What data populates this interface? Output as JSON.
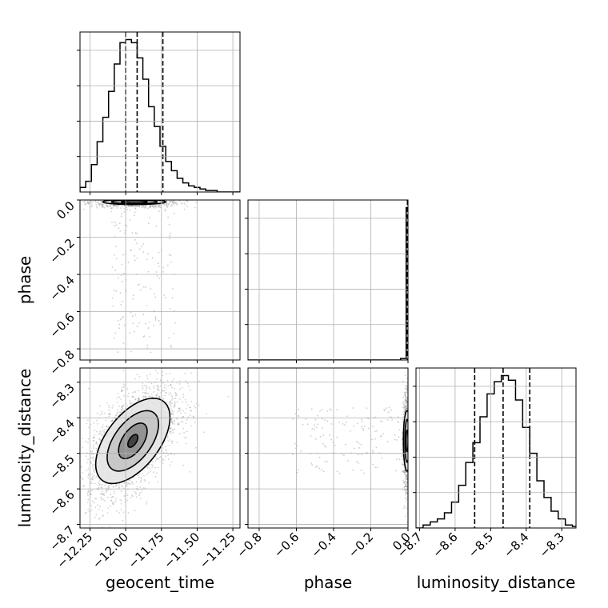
{
  "chart_data": {
    "type": "corner",
    "parameters": [
      "geocent_time",
      "phase",
      "luminosity_distance"
    ],
    "axis_labels": {
      "geocent_time": "geocent_time",
      "phase": "phase",
      "luminosity_distance": "luminosity_distance"
    },
    "ranges": {
      "geocent_time": [
        -12.32,
        -11.2
      ],
      "phase": [
        -0.86,
        0.0
      ],
      "luminosity_distance": [
        -8.71,
        -8.26
      ]
    },
    "ticks": {
      "geocent_time": [
        -12.25,
        -12.0,
        -11.75,
        -11.5,
        -11.25
      ],
      "phase": [
        -0.8,
        -0.6,
        -0.4,
        -0.2,
        0.0
      ],
      "luminosity_distance": [
        -8.7,
        -8.6,
        -8.5,
        -8.4,
        -8.3
      ]
    },
    "tick_labels": {
      "geocent_time": [
        "−12.25",
        "−12.00",
        "−11.75",
        "−11.50",
        "−11.25"
      ],
      "phase": [
        "−0.8",
        "−0.6",
        "−0.4",
        "−0.2",
        "0.0"
      ],
      "luminosity_distance": [
        "−8.7",
        "−8.6",
        "−8.5",
        "−8.4",
        "−8.3"
      ]
    },
    "grid": true,
    "quantiles": {
      "geocent_time": [
        -12.0,
        -11.92,
        -11.74
      ],
      "phase": [
        -0.003,
        -0.001,
        0.0
      ],
      "luminosity_distance": [
        -8.545,
        -8.465,
        -8.39
      ]
    },
    "histograms": {
      "geocent_time": {
        "edges": [
          -12.32,
          -12.28,
          -12.24,
          -12.2,
          -12.16,
          -12.12,
          -12.08,
          -12.04,
          -12.0,
          -11.96,
          -11.92,
          -11.88,
          -11.84,
          -11.8,
          -11.76,
          -11.72,
          -11.68,
          -11.64,
          -11.6,
          -11.56,
          -11.52,
          -11.48,
          -11.44,
          -11.4,
          -11.36,
          -11.32,
          -11.28,
          -11.24,
          -11.2
        ],
        "counts": [
          0.03,
          0.07,
          0.18,
          0.33,
          0.49,
          0.66,
          0.84,
          0.98,
          1.0,
          0.98,
          0.88,
          0.74,
          0.56,
          0.43,
          0.3,
          0.2,
          0.14,
          0.09,
          0.06,
          0.04,
          0.03,
          0.02,
          0.01,
          0.01,
          0.0,
          0.0,
          0.0,
          0.0
        ]
      },
      "phase": {
        "edges": [
          -0.86,
          -0.04,
          -0.01,
          0.0
        ],
        "counts": [
          0.0,
          0.01,
          1.0
        ]
      },
      "luminosity_distance": {
        "edges": [
          -8.71,
          -8.69,
          -8.67,
          -8.65,
          -8.63,
          -8.61,
          -8.59,
          -8.57,
          -8.55,
          -8.53,
          -8.51,
          -8.49,
          -8.47,
          -8.45,
          -8.43,
          -8.41,
          -8.39,
          -8.37,
          -8.35,
          -8.33,
          -8.31,
          -8.29,
          -8.27,
          -8.26
        ],
        "counts": [
          0.0,
          0.02,
          0.04,
          0.06,
          0.1,
          0.17,
          0.28,
          0.43,
          0.56,
          0.73,
          0.88,
          0.96,
          1.0,
          0.97,
          0.84,
          0.66,
          0.49,
          0.31,
          0.2,
          0.11,
          0.06,
          0.02,
          0.01
        ]
      }
    },
    "joint": [
      {
        "x": "geocent_time",
        "y": "phase",
        "center": [
          -11.94,
          -0.01
        ],
        "spread": [
          0.12,
          0.012
        ],
        "levels": [
          {
            "sx": 0.22,
            "sy": 0.014
          },
          {
            "sx": 0.16,
            "sy": 0.01
          },
          {
            "sx": 0.09,
            "sy": 0.006
          }
        ],
        "outlier_cloud": {
          "x": [
            -12.1,
            -11.65
          ],
          "y": [
            -0.82,
            -0.02
          ]
        }
      },
      {
        "x": "geocent_time",
        "y": "luminosity_distance",
        "center": [
          -11.95,
          -8.465
        ],
        "spread": [
          0.12,
          0.06
        ],
        "correlation": 0.55,
        "levels": [
          {
            "sx": 0.26,
            "sy": 0.12
          },
          {
            "sx": 0.18,
            "sy": 0.085
          },
          {
            "sx": 0.1,
            "sy": 0.05
          },
          {
            "sx": 0.035,
            "sy": 0.018
          }
        ]
      },
      {
        "x": "phase",
        "y": "luminosity_distance",
        "center": [
          -0.005,
          -8.465
        ],
        "spread": [
          0.008,
          0.06
        ],
        "levels": [
          {
            "sx": 0.02,
            "sy": 0.085
          },
          {
            "sx": 0.012,
            "sy": 0.06
          },
          {
            "sx": 0.006,
            "sy": 0.03
          }
        ],
        "outlier_cloud": {
          "x": [
            -0.62,
            -0.02
          ],
          "y": [
            -8.56,
            -8.37
          ]
        }
      }
    ]
  },
  "colors": {
    "line": "#000000",
    "grid": "#b0b0b0",
    "points": "#808080"
  }
}
